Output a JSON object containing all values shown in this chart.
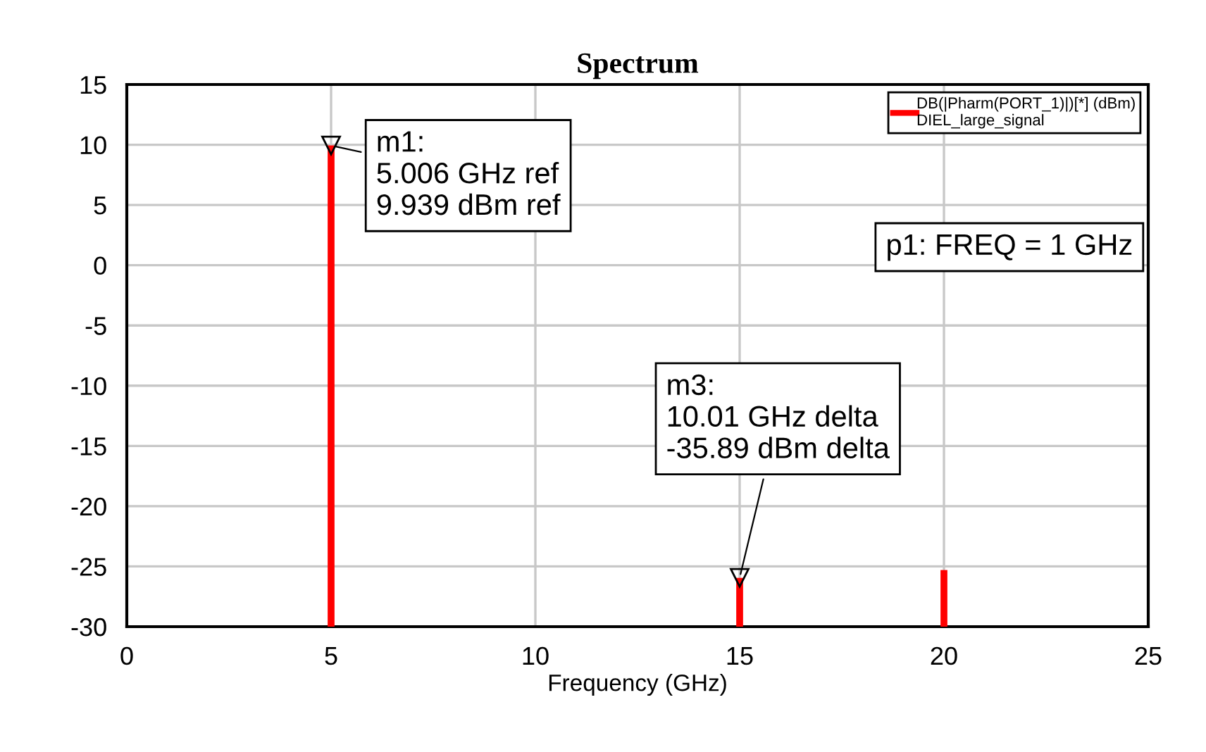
{
  "chart_data": {
    "type": "line",
    "title": "Spectrum",
    "xlabel": "Frequency (GHz)",
    "series": [
      {
        "name": "DB(|Pharm(PORT_1)|)[*] (dBm)\nDIEL_large_signal",
        "color": "#ff0000",
        "x": [
          5,
          5
        ],
        "values": [
          -30,
          9.94
        ]
      },
      {
        "color": "#ff0000",
        "x": [
          15,
          15
        ],
        "values": [
          -30,
          -25.95
        ]
      },
      {
        "color": "#ff0000",
        "x": [
          20,
          20
        ],
        "values": [
          -30,
          -25.3
        ]
      }
    ],
    "xlim": [
      0,
      25
    ],
    "xticks": [
      0,
      5,
      10,
      15,
      20,
      25
    ],
    "ylim": [
      -30,
      15
    ],
    "yticks": [
      -30,
      -25,
      -20,
      -15,
      -10,
      -5,
      0,
      5,
      10,
      15
    ],
    "grid": true,
    "legend": "top right",
    "annotations": [
      {
        "text": "m1:\n5.006 GHz ref\n9.939 dBm ref",
        "x": 5,
        "y": 9.939
      },
      {
        "text": "m3:\n10.01 GHz delta\n-35.89 dBm delta",
        "x": 15,
        "y": -25.951
      },
      "p1: FREQ = 1 GHz"
    ]
  }
}
